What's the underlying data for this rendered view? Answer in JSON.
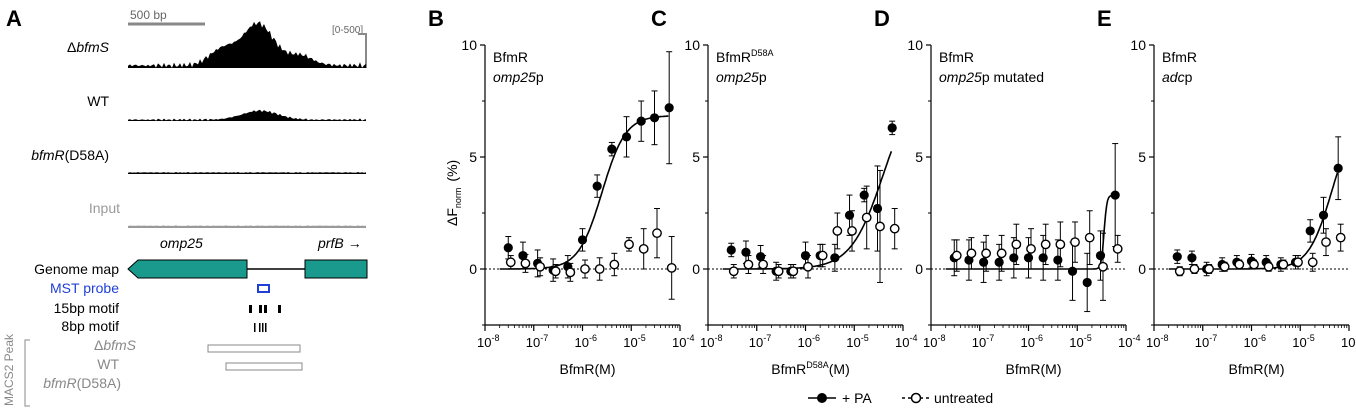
{
  "panel_letters": [
    "A",
    "B",
    "C",
    "D",
    "E"
  ],
  "panel_a": {
    "scale_bar": "500 bp",
    "range": "[0-500]",
    "track_labels": {
      "delta": "Δ",
      "bfmS": "bfmS",
      "wt": "WT",
      "bfmR": "bfmR",
      "d58a": "(D58A)",
      "input": "Input"
    },
    "genome_map_label": "Genome map",
    "genes": {
      "omp25": "omp25",
      "prfB": "prfB",
      "arrow": "→"
    },
    "mst_probe": "MST probe",
    "motif_15bp": "15bp motif",
    "motif_8bp": "8bp motif",
    "macs2_label": "MACS2 Peak",
    "peak_labels": {
      "delta": "Δ",
      "bfmS": "bfmS",
      "wt": "WT",
      "bfmR": "bfmR",
      "d58a": "(D58A)"
    },
    "colors": {
      "gene": "#1a9a8c",
      "probe": "#1f3fd6",
      "input": "#9a9a9a",
      "track": "#000000"
    }
  },
  "axes": {
    "ylabel_main": "ΔF",
    "ylabel_sub": "norm",
    "ylabel_unit": "(%)",
    "y_ticks": [
      "0",
      "5",
      "10"
    ],
    "x_tick_base": "10",
    "x_tick_exps": [
      "-8",
      "-7",
      "-6",
      "-5",
      "-4"
    ],
    "x_labels": {
      "B": {
        "main": "BfmR(M)",
        "sup": ""
      },
      "C": {
        "main": "BfmR",
        "sup": "D58A",
        "tail": "(M)"
      },
      "D": {
        "main": "BfmR(M)",
        "sup": ""
      },
      "E": {
        "main": "BfmR(M)",
        "sup": ""
      }
    }
  },
  "legend": {
    "pa": "+ PA",
    "untreated": "untreated"
  },
  "chart_data": [
    {
      "panel": "B",
      "type": "scatter",
      "label_line1": "BfmR",
      "label_sup": "",
      "label_line2_italic": "omp25",
      "label_line2_rest": "p",
      "x_scale": "log",
      "xlim": [
        1e-08,
        0.0001
      ],
      "ylim": [
        -2.5,
        10
      ],
      "xlabel": "BfmR(M)",
      "ylabel": "ΔF norm (%)",
      "x": [
        3e-08,
        6e-08,
        1.2e-07,
        2.5e-07,
        5e-07,
        1e-06,
        2e-06,
        4e-06,
        8e-06,
        1.6e-05,
        3e-05,
        6e-05
      ],
      "series": [
        {
          "name": "+ PA",
          "values": [
            0.95,
            0.6,
            0.25,
            -0.05,
            0.1,
            1.3,
            3.7,
            5.35,
            5.9,
            6.6,
            6.75,
            7.2
          ],
          "errors": [
            0.5,
            0.6,
            0.6,
            0.5,
            0.5,
            0.5,
            0.5,
            0.3,
            0.9,
            0.9,
            1.2,
            2.5
          ],
          "fit": {
            "bottom": 0.0,
            "top": 6.85,
            "log_ec50": -5.6,
            "hill": 1.8
          }
        },
        {
          "name": "untreated",
          "values": [
            0.3,
            0.25,
            0.1,
            -0.1,
            -0.15,
            0.0,
            0.0,
            0.2,
            1.1,
            0.9,
            1.6,
            0.05
          ],
          "errors": [
            0.3,
            0.4,
            0.4,
            0.3,
            0.4,
            0.4,
            0.5,
            0.5,
            0.3,
            0.9,
            1.1,
            1.4
          ]
        }
      ]
    },
    {
      "panel": "C",
      "type": "scatter",
      "label_line1": "BfmR",
      "label_sup": "D58A",
      "label_line2_italic": "omp25",
      "label_line2_rest": "p",
      "x_scale": "log",
      "xlim": [
        1e-08,
        0.0001
      ],
      "ylim": [
        -2.5,
        10
      ],
      "xlabel": "BfmR D58A (M)",
      "ylabel": "ΔF norm (%)",
      "x": [
        3e-08,
        6e-08,
        1.2e-07,
        2.5e-07,
        5e-07,
        1e-06,
        2e-06,
        4e-06,
        8e-06,
        1.6e-05,
        3e-05,
        6e-05
      ],
      "series": [
        {
          "name": "+ PA",
          "values": [
            0.85,
            0.75,
            0.55,
            -0.1,
            -0.1,
            0.6,
            0.6,
            0.5,
            2.4,
            3.3,
            2.7,
            6.3
          ],
          "errors": [
            0.3,
            0.5,
            0.5,
            0.4,
            0.3,
            0.6,
            0.5,
            0.6,
            0.9,
            0.3,
            1.9,
            0.3
          ],
          "fit": {
            "bottom": 0.0,
            "top": 8.5,
            "log_ec50": -4.4,
            "hill": 1.3
          }
        },
        {
          "name": "untreated",
          "values": [
            -0.1,
            0.2,
            0.2,
            -0.1,
            -0.1,
            0.1,
            0.6,
            1.7,
            1.7,
            2.3,
            1.9,
            1.8
          ],
          "errors": [
            0.3,
            0.4,
            0.4,
            0.3,
            0.3,
            0.5,
            0.5,
            0.8,
            0.9,
            1.4,
            2.5,
            0.9
          ]
        }
      ]
    },
    {
      "panel": "D",
      "type": "scatter",
      "label_line1": "BfmR",
      "label_sup": "",
      "label_line2_italic": "omp25",
      "label_line2_rest": "p mutated",
      "x_scale": "log",
      "xlim": [
        1e-08,
        0.0001
      ],
      "ylim": [
        -2.5,
        10
      ],
      "xlabel": "BfmR(M)",
      "ylabel": "ΔF norm (%)",
      "x": [
        3e-08,
        6e-08,
        1.2e-07,
        2.5e-07,
        5e-07,
        1e-06,
        2e-06,
        4e-06,
        8e-06,
        1.6e-05,
        3e-05,
        6e-05
      ],
      "series": [
        {
          "name": "+ PA",
          "values": [
            0.5,
            0.4,
            0.3,
            0.3,
            0.5,
            0.5,
            0.5,
            0.4,
            -0.1,
            -0.6,
            0.6,
            3.3
          ],
          "errors": [
            0.8,
            0.9,
            0.9,
            0.8,
            0.9,
            0.9,
            1.0,
            0.9,
            1.3,
            1.3,
            1.1,
            2.3
          ],
          "fit": {
            "bottom": 0.0,
            "top": 3.3,
            "log_ec50": -4.45,
            "hill": 15
          }
        },
        {
          "name": "untreated",
          "values": [
            0.6,
            0.7,
            0.7,
            0.7,
            1.1,
            0.9,
            1.1,
            1.1,
            1.2,
            1.4,
            0.1,
            0.9
          ],
          "errors": [
            0.7,
            0.7,
            0.8,
            0.8,
            0.9,
            0.9,
            0.9,
            1.0,
            0.9,
            1.2,
            1.5,
            0.6
          ]
        }
      ]
    },
    {
      "panel": "E",
      "type": "scatter",
      "label_line1": "BfmR",
      "label_sup": "",
      "label_line2_italic": "adc",
      "label_line2_rest": "p",
      "x_scale": "log",
      "xlim": [
        1e-08,
        0.0001
      ],
      "ylim": [
        -2.5,
        10
      ],
      "xlabel": "BfmR(M)",
      "ylabel": "ΔF norm (%)",
      "x": [
        3e-08,
        6e-08,
        1.2e-07,
        2.5e-07,
        5e-07,
        1e-06,
        2e-06,
        4e-06,
        8e-06,
        1.6e-05,
        3e-05,
        6e-05
      ],
      "series": [
        {
          "name": "+ PA",
          "values": [
            0.55,
            0.5,
            0.0,
            0.2,
            0.3,
            0.35,
            0.3,
            0.2,
            0.3,
            1.7,
            2.4,
            4.5
          ],
          "errors": [
            0.3,
            0.3,
            0.3,
            0.3,
            0.3,
            0.3,
            0.3,
            0.3,
            0.3,
            0.5,
            0.8,
            1.4
          ],
          "fit": {
            "bottom": 0.0,
            "top": 7.0,
            "log_ec50": -4.35,
            "hill": 1.8
          }
        },
        {
          "name": "untreated",
          "values": [
            -0.1,
            0.0,
            0.0,
            0.1,
            0.2,
            0.2,
            0.1,
            0.2,
            0.3,
            0.3,
            1.2,
            1.4
          ],
          "errors": [
            0.2,
            0.2,
            0.2,
            0.2,
            0.2,
            0.2,
            0.2,
            0.2,
            0.3,
            0.4,
            0.6,
            0.6
          ]
        }
      ]
    }
  ]
}
